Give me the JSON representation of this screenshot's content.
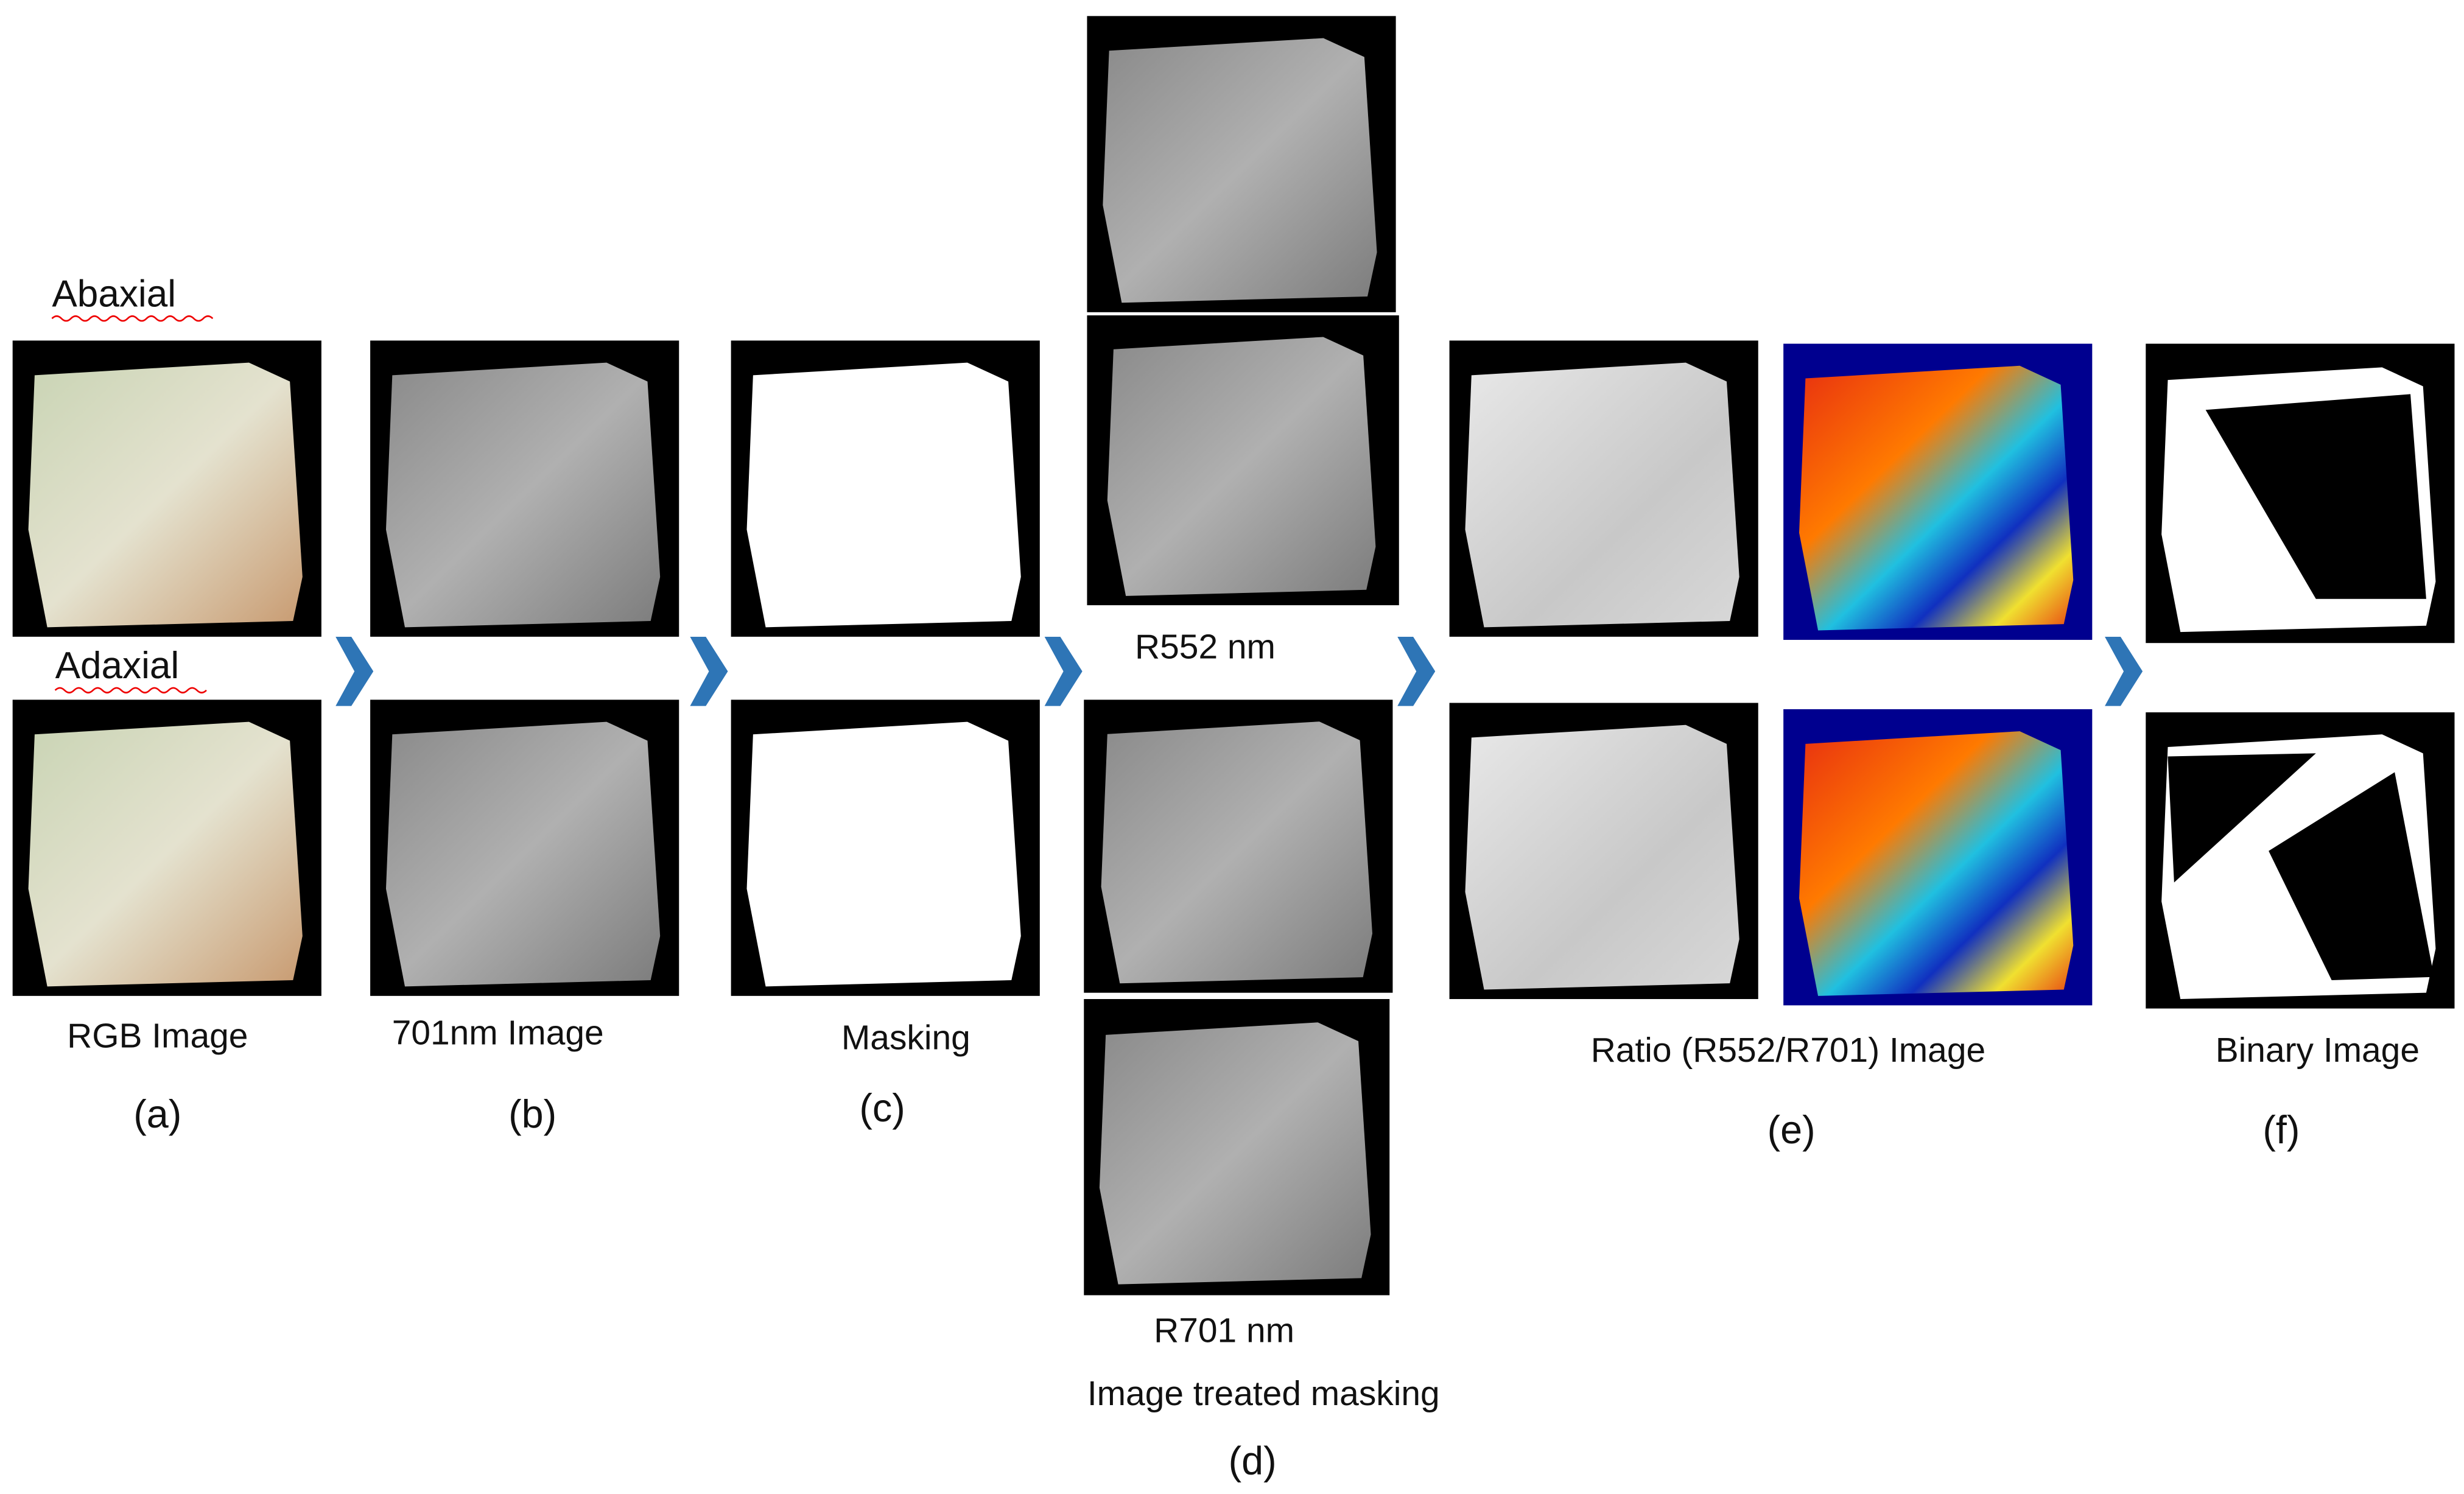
{
  "labels": {
    "abaxial": "Abaxial",
    "adaxial": "Adaxial"
  },
  "panels": [
    {
      "caption": "RGB Image",
      "letter": "(a)"
    },
    {
      "caption": "701nm Image",
      "letter": "(b)"
    },
    {
      "caption": "Masking",
      "letter": "(c)"
    },
    {
      "captions": [
        "R552 nm",
        "R701 nm",
        "Image treated masking"
      ],
      "letter": "(d)"
    },
    {
      "caption": "Ratio (R552/R701) Image",
      "letter": "(e)"
    },
    {
      "caption": "Binary Image",
      "letter": "(f)"
    }
  ]
}
